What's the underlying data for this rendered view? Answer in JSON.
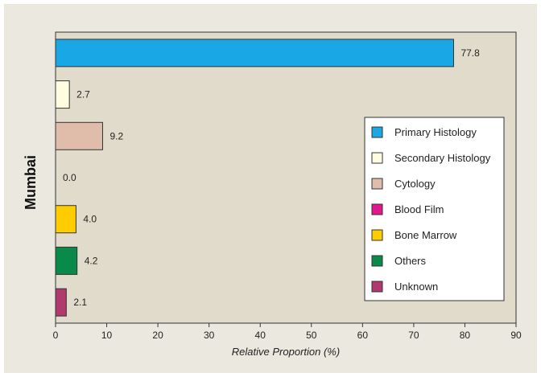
{
  "chart_data": {
    "type": "bar",
    "orientation": "horizontal",
    "group_label": "Mumbai",
    "xlabel": "Relative Proportion (%)",
    "xlim": [
      0,
      90
    ],
    "xticks": [
      0,
      10,
      20,
      30,
      40,
      50,
      60,
      70,
      80,
      90
    ],
    "value_labels": [
      "77.8",
      "2.7",
      "9.2",
      "0.0",
      "4.0",
      "4.2",
      "2.1"
    ],
    "series": [
      {
        "name": "Primary Histology",
        "value": 77.8,
        "color": "#1aa7e6"
      },
      {
        "name": "Secondary Histology",
        "value": 2.7,
        "color": "#fffde0"
      },
      {
        "name": "Cytology",
        "value": 9.2,
        "color": "#e0bcaa"
      },
      {
        "name": "Blood Film",
        "value": 0.0,
        "color": "#e0178f"
      },
      {
        "name": "Bone Marrow",
        "value": 4.0,
        "color": "#ffcc00"
      },
      {
        "name": "Others",
        "value": 4.2,
        "color": "#0a8a4a"
      },
      {
        "name": "Unknown",
        "value": 2.1,
        "color": "#b03a6e"
      }
    ],
    "legend_position": "right"
  },
  "colors": {
    "plot_background": "#e1dbcc",
    "frame_background": "#ebe8e0"
  }
}
